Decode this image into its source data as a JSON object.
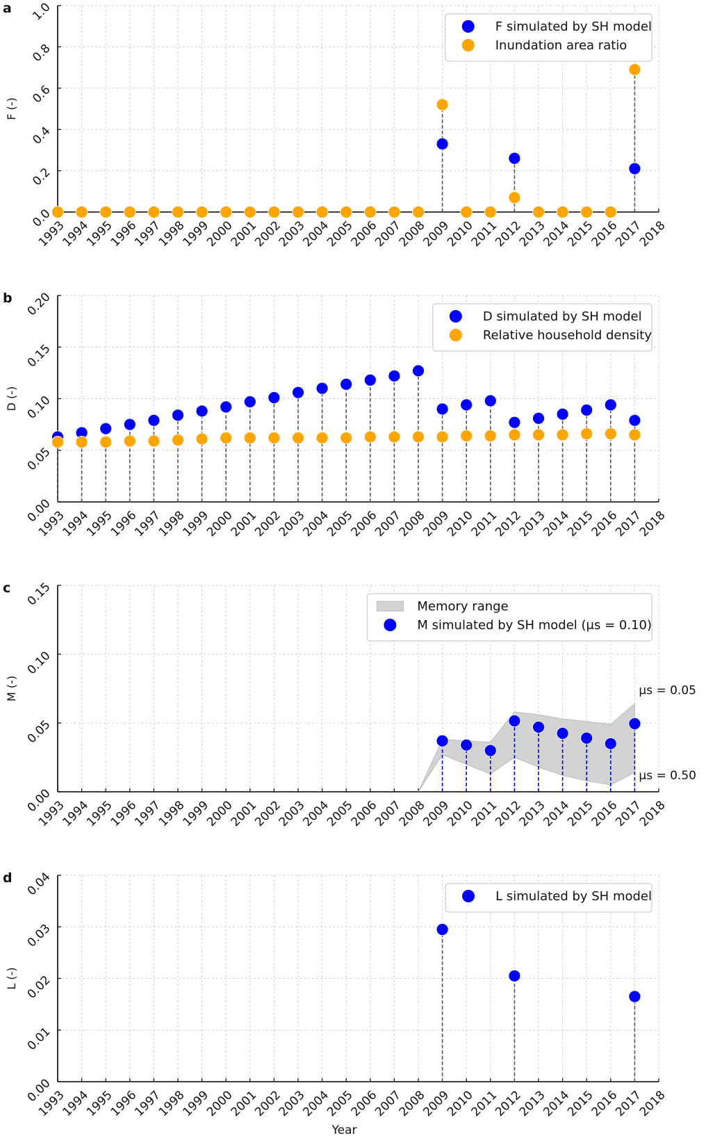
{
  "chart_data": [
    {
      "type": "scatter",
      "panel_label": "a",
      "ylabel": "F (-)",
      "ylim": [
        0,
        1.0
      ],
      "yticks": [
        0.0,
        0.2,
        0.4,
        0.6,
        0.8,
        1.0
      ],
      "ytick_decimals": 1,
      "x_ticks": [
        1993,
        1994,
        1995,
        1996,
        1997,
        1998,
        1999,
        2000,
        2001,
        2002,
        2003,
        2004,
        2005,
        2006,
        2007,
        2008,
        2009,
        2010,
        2011,
        2012,
        2013,
        2014,
        2015,
        2016,
        2017,
        2018
      ],
      "legend": "top-right",
      "stem_pairs": true,
      "series": [
        {
          "name": "F simulated by SH model",
          "color": "#0000ff",
          "x": [
            2009,
            2012,
            2017
          ],
          "y": [
            0.33,
            0.26,
            0.21
          ]
        },
        {
          "name": "Inundation area ratio",
          "color": "#ffa500",
          "x": [
            1993,
            1994,
            1995,
            1996,
            1997,
            1998,
            1999,
            2000,
            2001,
            2002,
            2003,
            2004,
            2005,
            2006,
            2007,
            2008,
            2009,
            2010,
            2011,
            2012,
            2013,
            2014,
            2015,
            2016,
            2017
          ],
          "y": [
            0,
            0,
            0,
            0,
            0,
            0,
            0,
            0,
            0,
            0,
            0,
            0,
            0,
            0,
            0,
            0,
            0.52,
            0,
            0,
            0.07,
            0,
            0,
            0,
            0,
            0.69
          ]
        }
      ]
    },
    {
      "type": "scatter",
      "panel_label": "b",
      "ylabel": "D (-)",
      "ylim": [
        0,
        0.2
      ],
      "yticks": [
        0.0,
        0.05,
        0.1,
        0.15,
        0.2
      ],
      "ytick_decimals": 2,
      "x_ticks": [
        1993,
        1994,
        1995,
        1996,
        1997,
        1998,
        1999,
        2000,
        2001,
        2002,
        2003,
        2004,
        2005,
        2006,
        2007,
        2008,
        2009,
        2010,
        2011,
        2012,
        2013,
        2014,
        2015,
        2016,
        2017,
        2018
      ],
      "legend": "top-right",
      "stem_pairs": true,
      "series": [
        {
          "name": "D simulated by SH model",
          "color": "#0000ff",
          "x": [
            1993,
            1994,
            1995,
            1996,
            1997,
            1998,
            1999,
            2000,
            2001,
            2002,
            2003,
            2004,
            2005,
            2006,
            2007,
            2008,
            2009,
            2010,
            2011,
            2012,
            2013,
            2014,
            2015,
            2016,
            2017
          ],
          "y": [
            0.063,
            0.067,
            0.071,
            0.075,
            0.079,
            0.084,
            0.088,
            0.092,
            0.097,
            0.101,
            0.106,
            0.11,
            0.114,
            0.118,
            0.122,
            0.127,
            0.09,
            0.094,
            0.098,
            0.077,
            0.081,
            0.085,
            0.089,
            0.094,
            0.079
          ]
        },
        {
          "name": "Relative household density",
          "color": "#ffa500",
          "x": [
            1993,
            1994,
            1995,
            1996,
            1997,
            1998,
            1999,
            2000,
            2001,
            2002,
            2003,
            2004,
            2005,
            2006,
            2007,
            2008,
            2009,
            2010,
            2011,
            2012,
            2013,
            2014,
            2015,
            2016,
            2017
          ],
          "y": [
            0.058,
            0.058,
            0.058,
            0.059,
            0.059,
            0.06,
            0.061,
            0.062,
            0.062,
            0.062,
            0.062,
            0.062,
            0.062,
            0.063,
            0.063,
            0.063,
            0.063,
            0.064,
            0.064,
            0.065,
            0.065,
            0.065,
            0.066,
            0.066,
            0.065
          ]
        }
      ]
    },
    {
      "type": "scatter",
      "panel_label": "c",
      "ylabel": "M (-)",
      "ylim": [
        0,
        0.15
      ],
      "yticks": [
        0.0,
        0.05,
        0.1,
        0.15
      ],
      "ytick_decimals": 2,
      "x_ticks": [
        1993,
        1994,
        1995,
        1996,
        1997,
        1998,
        1999,
        2000,
        2001,
        2002,
        2003,
        2004,
        2005,
        2006,
        2007,
        2008,
        2009,
        2010,
        2011,
        2012,
        2013,
        2014,
        2015,
        2016,
        2017,
        2018
      ],
      "legend": "top-right",
      "stem_color": "#0000ff",
      "band": {
        "name": "Memory range",
        "color": "#d3d3d3",
        "x": [
          2008,
          2009,
          2010,
          2011,
          2012,
          2013,
          2014,
          2015,
          2016,
          2017
        ],
        "upper": [
          0,
          0.038,
          0.037,
          0.036,
          0.058,
          0.056,
          0.053,
          0.051,
          0.049,
          0.064
        ],
        "lower": [
          0,
          0.027,
          0.02,
          0.013,
          0.025,
          0.018,
          0.012,
          0.008,
          0.005,
          0.014
        ]
      },
      "annotations": [
        {
          "text": "μs = 0.05",
          "x": 2017,
          "y": 0.066
        },
        {
          "text": "μs = 0.50",
          "x": 2017,
          "y": 0.012
        }
      ],
      "series": [
        {
          "name": "M simulated by SH model (μs = 0.10)",
          "color": "#0000ff",
          "x": [
            2009,
            2010,
            2011,
            2012,
            2013,
            2014,
            2015,
            2016,
            2017
          ],
          "y": [
            0.037,
            0.034,
            0.03,
            0.0515,
            0.047,
            0.0425,
            0.039,
            0.035,
            0.0495
          ]
        }
      ]
    },
    {
      "type": "scatter",
      "panel_label": "d",
      "ylabel": "L (-)",
      "xlabel": "Year",
      "ylim": [
        0,
        0.04
      ],
      "yticks": [
        0.0,
        0.01,
        0.02,
        0.03,
        0.04
      ],
      "ytick_decimals": 2,
      "x_ticks": [
        1993,
        1994,
        1995,
        1996,
        1997,
        1998,
        1999,
        2000,
        2001,
        2002,
        2003,
        2004,
        2005,
        2006,
        2007,
        2008,
        2009,
        2010,
        2011,
        2012,
        2013,
        2014,
        2015,
        2016,
        2017,
        2018
      ],
      "legend": "top-right",
      "series": [
        {
          "name": "L simulated by SH model",
          "color": "#0000ff",
          "x": [
            2009,
            2012,
            2017
          ],
          "y": [
            0.0295,
            0.0205,
            0.0165
          ]
        }
      ]
    }
  ]
}
